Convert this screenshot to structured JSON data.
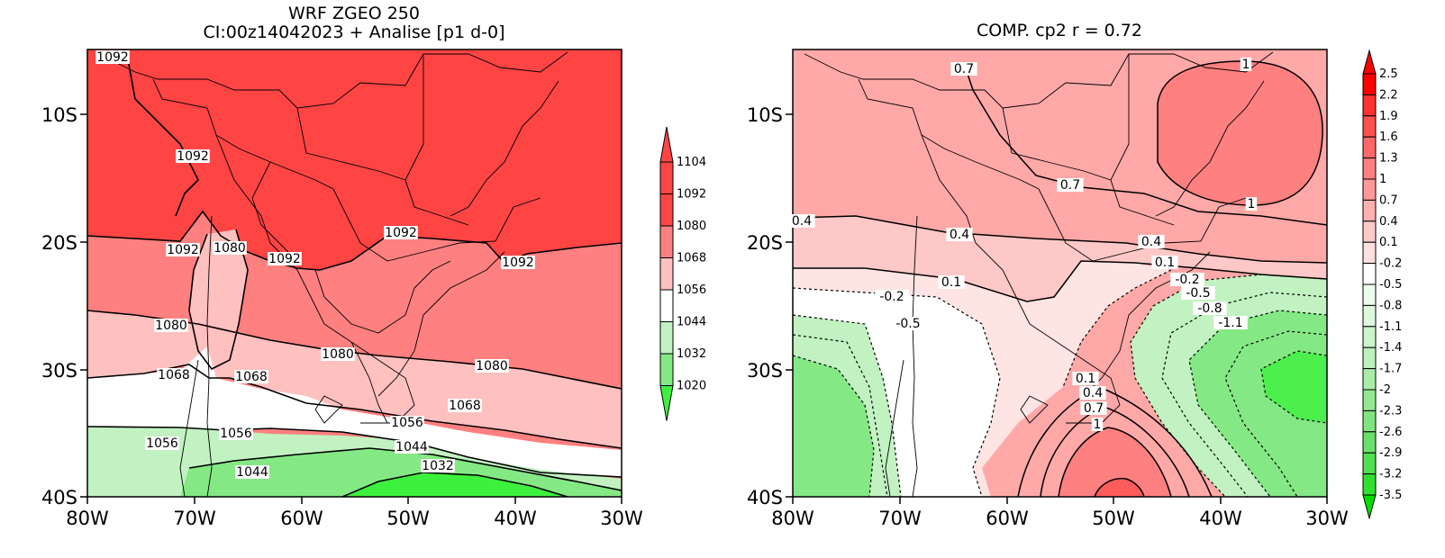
{
  "left_panel": {
    "title_line1": "WRF ZGEO 250",
    "title_line2": "CI:00z14042023 + Analise  [p1 d-0]",
    "x_ticks": [
      "80W",
      "70W",
      "60W",
      "50W",
      "40W",
      "30W"
    ],
    "y_ticks": [
      "10S",
      "20S",
      "30S",
      "40S"
    ],
    "colorbar_labels": [
      "1104",
      "1092",
      "1080",
      "1068",
      "1056",
      "1044",
      "1032",
      "1020"
    ],
    "band_colors": [
      "#ff4444",
      "#ff8080",
      "#ffc0c0",
      "#ffffff",
      "#c2f2c2",
      "#84e884",
      "#3ef03e"
    ],
    "contour_labels": [
      "1092",
      "1092",
      "1092",
      "1080",
      "1092",
      "1092",
      "1092",
      "1080",
      "1080",
      "1080",
      "1068",
      "1068",
      "1068",
      "1056",
      "1056",
      "1056",
      "1044",
      "1044",
      "1032"
    ]
  },
  "right_panel": {
    "title": "COMP. cp2  r =  0.72",
    "x_ticks": [
      "80W",
      "70W",
      "60W",
      "50W",
      "40W",
      "30W"
    ],
    "y_ticks": [
      "10S",
      "20S",
      "30S",
      "40S"
    ],
    "colorbar_labels": [
      "2.5",
      "2.2",
      "1.9",
      "1.6",
      "1.3",
      "1",
      "0.7",
      "0.4",
      "0.1",
      "-0.2",
      "-0.5",
      "-0.8",
      "-1.1",
      "-1.4",
      "-1.7",
      "-2",
      "-2.3",
      "-2.6",
      "-2.9",
      "-3.2",
      "-3.5"
    ],
    "contour_labels": [
      "0.7",
      "1",
      "0.7",
      "1",
      "0.4",
      "0.4",
      "0.4",
      "0.1",
      "0.1",
      "-0.2",
      "-0.2",
      "-0.5",
      "-0.5",
      "-0.8",
      "-1.1",
      "0.1",
      "0.4",
      "0.7",
      "1"
    ]
  },
  "colors": {
    "red_strong": "#ff4444",
    "red_mid": "#ff8080",
    "red_light": "#ffa8a8",
    "pink": "#ffc8c8",
    "green_light": "#c2f2c2",
    "green_mid": "#84e884",
    "green_strong": "#3ef03e"
  }
}
